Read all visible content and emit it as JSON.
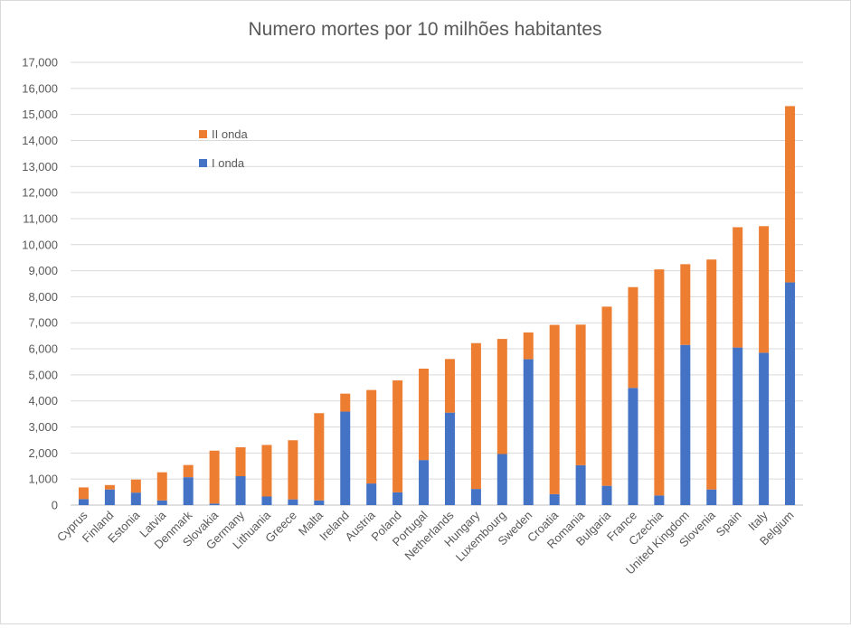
{
  "chart_data": {
    "type": "bar",
    "stacked": true,
    "title": "Numero mortes por 10 milhões habitantes",
    "xlabel": "",
    "ylabel": "",
    "ylim": [
      0,
      17000
    ],
    "y_ticks": [
      0,
      1000,
      2000,
      3000,
      4000,
      5000,
      6000,
      7000,
      8000,
      9000,
      10000,
      11000,
      12000,
      13000,
      14000,
      15000,
      16000,
      17000
    ],
    "y_tick_labels": [
      "0",
      "1,000",
      "2,000",
      "3,000",
      "4,000",
      "5,000",
      "6,000",
      "7,000",
      "8,000",
      "9,000",
      "10,000",
      "11,000",
      "12,000",
      "13,000",
      "14,000",
      "15,000",
      "16,000",
      "17,000"
    ],
    "grid": true,
    "legend_position": "top-left",
    "categories": [
      "Cyprus",
      "Finland",
      "Estonia",
      "Latvia",
      "Denmark",
      "Slovakia",
      "Germany",
      "Lithuania",
      "Greece",
      "Malta",
      "Ireland",
      "Austria",
      "Poland",
      "Portugal",
      "Netherlands",
      "Hungary",
      "Luxembourg",
      "Sweden",
      "Croatia",
      "Romania",
      "Bulgaria",
      "France",
      "Czechia",
      "United Kingdom",
      "Slovenia",
      "Spain",
      "Italy",
      "Belgium"
    ],
    "series": [
      {
        "name": "I onda",
        "color": "#4472c4",
        "values": [
          230,
          600,
          480,
          180,
          1070,
          60,
          1110,
          330,
          220,
          180,
          3590,
          830,
          490,
          1730,
          3550,
          620,
          1960,
          5600,
          420,
          1530,
          740,
          4500,
          370,
          6150,
          600,
          6050,
          5850,
          8550
        ]
      },
      {
        "name": "II onda",
        "color": "#ed7d31",
        "values": [
          450,
          170,
          500,
          1080,
          470,
          2030,
          1110,
          1980,
          2270,
          3350,
          690,
          3590,
          4300,
          3510,
          2060,
          5600,
          4420,
          1030,
          6500,
          5400,
          6880,
          3870,
          8680,
          3100,
          8830,
          4620,
          4860,
          6770
        ]
      }
    ]
  }
}
